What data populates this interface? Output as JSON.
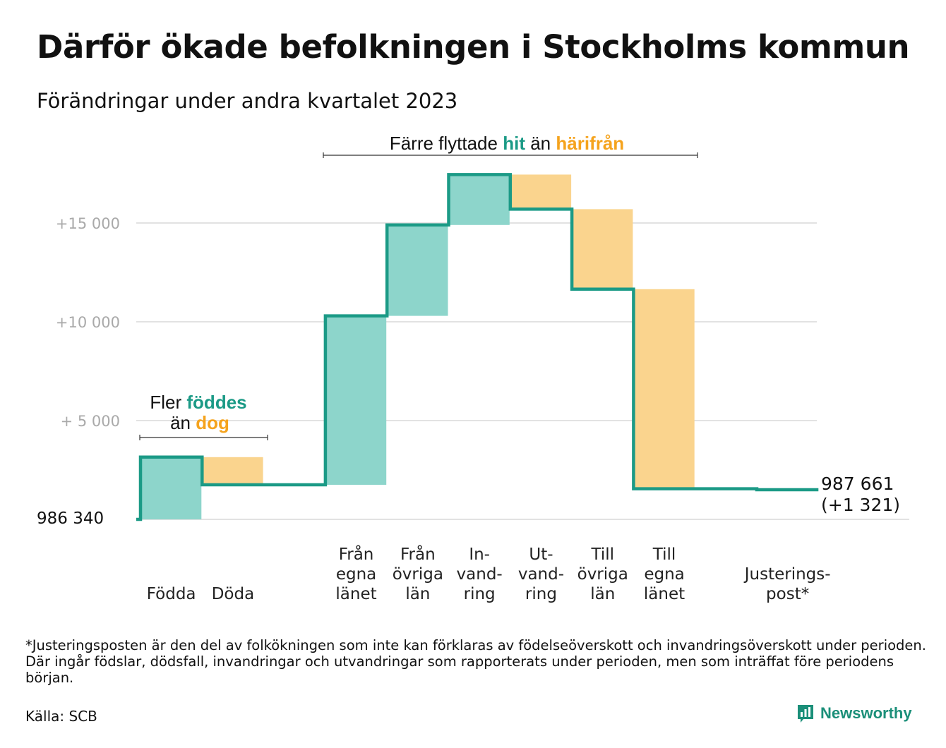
{
  "title": "Därför ökade befolkningen i Stockholms kommun",
  "subtitle": "Förändringar under andra kvartalet 2023",
  "annotations": {
    "births_vs_deaths": {
      "prefix": "Fler",
      "highlight1": "föddes",
      "middle": "än",
      "highlight2": "dog"
    },
    "moves": {
      "prefix": "Färre flyttade",
      "highlight1": "hit",
      "middle": "än",
      "highlight2": "härifrån"
    }
  },
  "footnote": "*Justeringsposten är den del av folkökningen som inte kan förklaras av födelseöverskott och invandringsöverskott under perioden. Där ingår födslar, dödsfall, invandringar och utvandringar som rapporterats under perioden, men som inträffat före periodens början.",
  "source": "Källa: SCB",
  "brand": "Newsworthy",
  "colors": {
    "increase": "#8dd5cb",
    "decrease": "#fad48e",
    "line": "#1b9a86",
    "accent_orange": "#f5a31d",
    "grid": "#e2e2e2"
  },
  "chart_data": {
    "type": "waterfall",
    "start_label": "986 340",
    "end_label": [
      "987 661",
      "(+1 321)"
    ],
    "start_value": 0,
    "ylim": [
      0,
      17500
    ],
    "yticks": [
      {
        "value": 5000,
        "label": "+  5  000"
      },
      {
        "value": 10000,
        "label": "+10    000"
      },
      {
        "value": 15000,
        "label": "+15    000"
      }
    ],
    "grid": true,
    "steps": [
      {
        "category": [
          "Födda"
        ],
        "delta": 3150
      },
      {
        "category": [
          "Döda"
        ],
        "delta": -1400
      },
      {
        "category": [],
        "delta": 0
      },
      {
        "category": [
          "Från",
          "egna",
          "länet"
        ],
        "delta": 8550
      },
      {
        "category": [
          "Från",
          "övriga",
          "län"
        ],
        "delta": 4600
      },
      {
        "category": [
          "In-",
          "vand-",
          "ring"
        ],
        "delta": 2550
      },
      {
        "category": [
          "Ut-",
          "vand-",
          "ring"
        ],
        "delta": -1750
      },
      {
        "category": [
          "Till",
          "övriga",
          "län"
        ],
        "delta": -4050
      },
      {
        "category": [
          "Till",
          "egna",
          "länet"
        ],
        "delta": -10100
      },
      {
        "category": [],
        "delta": 0
      },
      {
        "category": [
          "Justerings-",
          "post*"
        ],
        "delta": -50
      }
    ]
  }
}
